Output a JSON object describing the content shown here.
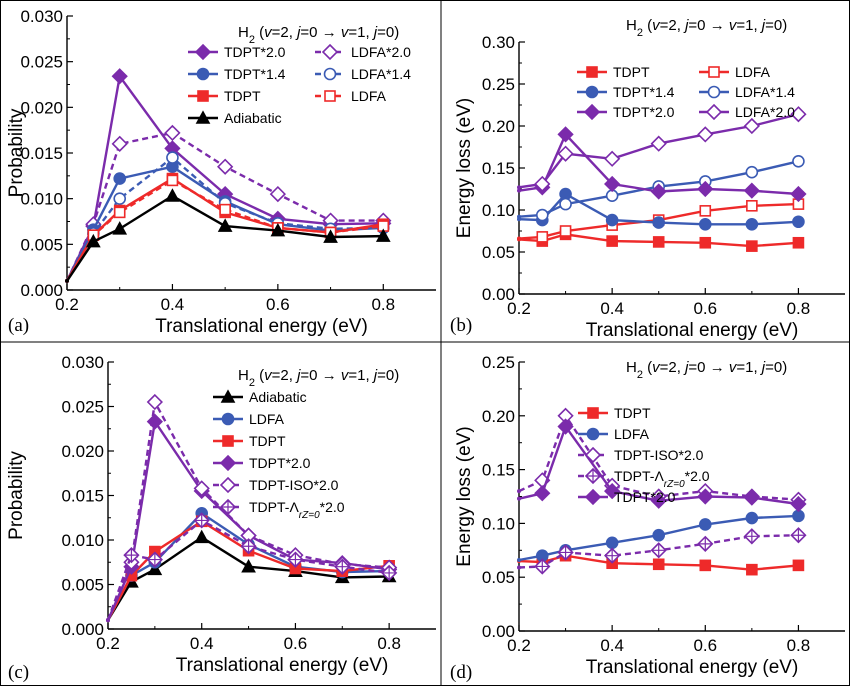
{
  "colors": {
    "purple": "#7b2bab",
    "blue": "#3b5bb4",
    "red": "#ee2a2a",
    "black": "#000000"
  },
  "chart_data": [
    {
      "panel": "(a)",
      "type": "line",
      "title": "H2 (v=2, j=0 → v=1, j=0)",
      "xlabel": "Translational energy (eV)",
      "ylabel": "Probability",
      "xlim": [
        0.2,
        0.9
      ],
      "ylim": [
        0,
        0.03
      ],
      "xticks": [
        "0.2",
        "0.4",
        "0.6",
        "0.8"
      ],
      "yticks": [
        "0.000",
        "0.005",
        "0.010",
        "0.015",
        "0.020",
        "0.025",
        "0.030"
      ],
      "x": [
        0.2,
        0.25,
        0.3,
        0.4,
        0.5,
        0.6,
        0.7,
        0.8
      ],
      "legend_layout": "two-column",
      "legend_position": "top-right",
      "series": [
        {
          "name": "TDPT*2.0",
          "color": "#7b2bab",
          "marker": "diamond",
          "filled": true,
          "dashed": false,
          "values": [
            0.001,
            0.007,
            0.0234,
            0.0155,
            0.0105,
            0.0078,
            0.0072,
            0.0073
          ]
        },
        {
          "name": "LDFA*2.0",
          "color": "#7b2bab",
          "marker": "diamond",
          "filled": false,
          "dashed": true,
          "values": [
            0.001,
            0.0072,
            0.016,
            0.0172,
            0.0135,
            0.0105,
            0.0076,
            0.0076
          ]
        },
        {
          "name": "TDPT*1.4",
          "color": "#3b5bb4",
          "marker": "circle",
          "filled": true,
          "dashed": false,
          "values": [
            0.001,
            0.0066,
            0.0122,
            0.0135,
            0.0097,
            0.0072,
            0.0065,
            0.0068
          ]
        },
        {
          "name": "LDFA*1.4",
          "color": "#3b5bb4",
          "marker": "circle",
          "filled": false,
          "dashed": true,
          "values": [
            0.001,
            0.0062,
            0.01,
            0.0145,
            0.0095,
            0.0073,
            0.0067,
            0.0068
          ]
        },
        {
          "name": "TDPT",
          "color": "#ee2a2a",
          "marker": "square",
          "filled": true,
          "dashed": false,
          "values": [
            0.001,
            0.006,
            0.0087,
            0.0122,
            0.0085,
            0.0068,
            0.0063,
            0.0072
          ]
        },
        {
          "name": "LDFA",
          "color": "#ee2a2a",
          "marker": "square",
          "filled": false,
          "dashed": true,
          "values": [
            0.001,
            0.006,
            0.0085,
            0.012,
            0.0088,
            0.0068,
            0.0063,
            0.007
          ]
        },
        {
          "name": "Adiabatic",
          "color": "#000000",
          "marker": "triangle",
          "filled": true,
          "dashed": false,
          "values": [
            0.001,
            0.0053,
            0.0067,
            0.0103,
            0.007,
            0.0065,
            0.0058,
            0.0059
          ]
        }
      ]
    },
    {
      "panel": "(b)",
      "type": "line",
      "title": "H2 (v=2, j=0 → v=1, j=0)",
      "xlabel": "Translational energy (eV)",
      "ylabel": "Energy loss (eV)",
      "xlim": [
        0.2,
        0.9
      ],
      "ylim": [
        0,
        0.3
      ],
      "xticks": [
        "0.2",
        "0.4",
        "0.6",
        "0.8"
      ],
      "yticks": [
        "0.00",
        "0.05",
        "0.10",
        "0.15",
        "0.20",
        "0.25",
        "0.30"
      ],
      "x": [
        0.2,
        0.25,
        0.3,
        0.4,
        0.5,
        0.6,
        0.7,
        0.8
      ],
      "legend_layout": "two-column",
      "legend_position": "top",
      "series": [
        {
          "name": "TDPT",
          "color": "#ee2a2a",
          "marker": "square",
          "filled": true,
          "dashed": false,
          "values": [
            0.065,
            0.063,
            0.071,
            0.063,
            0.062,
            0.061,
            0.057,
            0.061
          ]
        },
        {
          "name": "LDFA",
          "color": "#ee2a2a",
          "marker": "square",
          "filled": false,
          "dashed": false,
          "values": [
            0.066,
            0.068,
            0.075,
            0.082,
            0.088,
            0.099,
            0.105,
            0.107
          ]
        },
        {
          "name": "TDPT*1.4",
          "color": "#3b5bb4",
          "marker": "circle",
          "filled": true,
          "dashed": false,
          "values": [
            0.089,
            0.088,
            0.119,
            0.088,
            0.085,
            0.083,
            0.083,
            0.086
          ]
        },
        {
          "name": "LDFA*1.4",
          "color": "#3b5bb4",
          "marker": "circle",
          "filled": false,
          "dashed": false,
          "values": [
            0.092,
            0.094,
            0.107,
            0.117,
            0.128,
            0.134,
            0.145,
            0.158
          ]
        },
        {
          "name": "TDPT*2.0",
          "color": "#7b2bab",
          "marker": "diamond",
          "filled": true,
          "dashed": false,
          "values": [
            0.123,
            0.127,
            0.19,
            0.131,
            0.122,
            0.125,
            0.123,
            0.119
          ]
        },
        {
          "name": "LDFA*2.0",
          "color": "#7b2bab",
          "marker": "diamond",
          "filled": false,
          "dashed": false,
          "values": [
            0.127,
            0.131,
            0.167,
            0.161,
            0.179,
            0.19,
            0.2,
            0.214
          ]
        }
      ]
    },
    {
      "panel": "(c)",
      "type": "line",
      "title": "H2 (v=2, j=0 → v=1, j=0)",
      "xlabel": "Translational energy (eV)",
      "ylabel": "Probability",
      "xlim": [
        0.2,
        0.9
      ],
      "ylim": [
        0,
        0.03
      ],
      "xticks": [
        "0.2",
        "0.4",
        "0.6",
        "0.8"
      ],
      "yticks": [
        "0.000",
        "0.005",
        "0.010",
        "0.015",
        "0.020",
        "0.025",
        "0.030"
      ],
      "x": [
        0.2,
        0.25,
        0.3,
        0.4,
        0.5,
        0.6,
        0.7,
        0.8
      ],
      "legend_layout": "one-column",
      "legend_position": "top-right",
      "series": [
        {
          "name": "Adiabatic",
          "color": "#000000",
          "marker": "triangle",
          "filled": true,
          "dashed": false,
          "values": [
            0.001,
            0.0053,
            0.0067,
            0.0103,
            0.007,
            0.0065,
            0.0058,
            0.0059
          ]
        },
        {
          "name": "LDFA",
          "color": "#3b5bb4",
          "marker": "circle",
          "filled": true,
          "dashed": false,
          "values": [
            0.001,
            0.006,
            0.0075,
            0.013,
            0.0095,
            0.007,
            0.0064,
            0.0065
          ]
        },
        {
          "name": "TDPT",
          "color": "#ee2a2a",
          "marker": "square",
          "filled": true,
          "dashed": false,
          "values": [
            0.001,
            0.006,
            0.0087,
            0.0121,
            0.0088,
            0.0068,
            0.0065,
            0.0071
          ]
        },
        {
          "name": "TDPT*2.0",
          "color": "#7b2bab",
          "marker": "diamond",
          "filled": true,
          "dashed": false,
          "values": [
            0.001,
            0.007,
            0.0233,
            0.0155,
            0.0105,
            0.0078,
            0.0074,
            0.0067
          ]
        },
        {
          "name": "TDPT-ISO*2.0",
          "color": "#7b2bab",
          "marker": "diamond",
          "filled": false,
          "dashed": true,
          "values": [
            0.001,
            0.0075,
            0.0255,
            0.0158,
            0.0105,
            0.0083,
            0.0073,
            0.0069
          ]
        },
        {
          "name": "TDPT-Λ_rZ=0*2.0",
          "color": "#7b2bab",
          "marker": "diamondplus",
          "filled": false,
          "dashed": true,
          "values": [
            0.001,
            0.0083,
            0.0078,
            0.0122,
            0.0093,
            0.0078,
            0.007,
            0.0063
          ]
        }
      ]
    },
    {
      "panel": "(d)",
      "type": "line",
      "title": "H2 (v=2, j=0 → v=1, j=0)",
      "xlabel": "Translational energy (eV)",
      "ylabel": "Energy loss (eV)",
      "xlim": [
        0.2,
        0.9
      ],
      "ylim": [
        0,
        0.25
      ],
      "xticks": [
        "0.2",
        "0.4",
        "0.6",
        "0.8"
      ],
      "yticks": [
        "0.00",
        "0.05",
        "0.10",
        "0.15",
        "0.20",
        "0.25"
      ],
      "x": [
        0.2,
        0.25,
        0.3,
        0.4,
        0.5,
        0.6,
        0.7,
        0.8
      ],
      "legend_layout": "one-column",
      "legend_position": "top-right",
      "series": [
        {
          "name": "TDPT",
          "color": "#ee2a2a",
          "marker": "square",
          "filled": true,
          "dashed": false,
          "values": [
            0.065,
            0.064,
            0.07,
            0.063,
            0.062,
            0.061,
            0.057,
            0.061
          ]
        },
        {
          "name": "LDFA",
          "color": "#3b5bb4",
          "marker": "circle",
          "filled": true,
          "dashed": false,
          "values": [
            0.066,
            0.07,
            0.075,
            0.082,
            0.089,
            0.099,
            0.105,
            0.107
          ]
        },
        {
          "name": "TDPT-ISO*2.0",
          "color": "#7b2bab",
          "marker": "diamond",
          "filled": false,
          "dashed": true,
          "values": [
            0.13,
            0.14,
            0.2,
            0.135,
            0.125,
            0.13,
            0.125,
            0.122
          ]
        },
        {
          "name": "TDPT-Λ_rZ=0*2.0",
          "color": "#7b2bab",
          "marker": "diamondplus",
          "filled": false,
          "dashed": true,
          "values": [
            0.059,
            0.06,
            0.073,
            0.07,
            0.075,
            0.081,
            0.088,
            0.089
          ]
        },
        {
          "name": "TDPT*2.0",
          "color": "#7b2bab",
          "marker": "diamond",
          "filled": true,
          "dashed": false,
          "values": [
            0.123,
            0.128,
            0.19,
            0.13,
            0.121,
            0.125,
            0.124,
            0.118
          ]
        }
      ]
    }
  ]
}
